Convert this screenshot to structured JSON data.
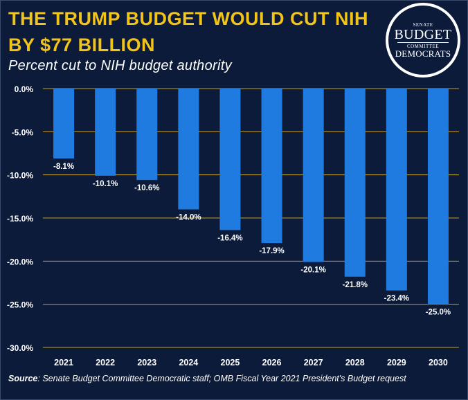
{
  "header": {
    "title": "THE TRUMP BUDGET WOULD CUT NIH BY $77 BILLION",
    "subtitle": "Percent cut to NIH budget authority"
  },
  "logo": {
    "line1": "SENATE",
    "line2": "BUDGET",
    "line3": "COMMITTEE",
    "line4": "DEMOCRATS"
  },
  "footer": {
    "source_label": "Source",
    "source_text": ": Senate Budget Committee Democratic staff; OMB Fiscal Year 2021 President's Budget request"
  },
  "colors": {
    "background": "#0c1b3a",
    "bar": "#1f7be0",
    "gridline": "#c9a227",
    "title": "#f2c318",
    "text": "#ffffff"
  },
  "chart_data": {
    "type": "bar",
    "title": "",
    "xlabel": "",
    "ylabel": "",
    "categories": [
      "2021",
      "2022",
      "2023",
      "2024",
      "2025",
      "2026",
      "2027",
      "2028",
      "2029",
      "2030"
    ],
    "values": [
      -8.1,
      -10.1,
      -10.6,
      -14.0,
      -16.4,
      -17.9,
      -20.1,
      -21.8,
      -23.4,
      -25.0
    ],
    "data_labels": [
      "-8.1%",
      "-10.1%",
      "-10.6%",
      "-14.0%",
      "-16.4%",
      "-17.9%",
      "-20.1%",
      "-21.8%",
      "-23.4%",
      "-25.0%"
    ],
    "yticks": [
      0,
      -5,
      -10,
      -15,
      -20,
      -25,
      -30
    ],
    "ytick_labels": [
      "0.0%",
      "-5.0%",
      "-10.0%",
      "-15.0%",
      "-20.0%",
      "-25.0%",
      "-30.0%"
    ],
    "ylim": [
      -30,
      0
    ],
    "grid": true,
    "legend": "none"
  }
}
